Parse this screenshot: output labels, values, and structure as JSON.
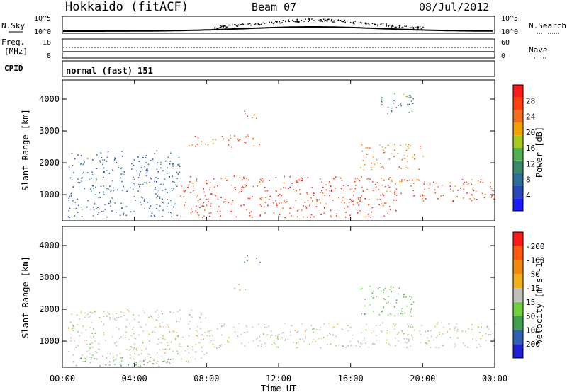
{
  "header": {
    "site": "Hokkaido (fitACF)",
    "beam": "Beam 07",
    "date": "08/Jul/2012"
  },
  "strip_labels": {
    "nsky": "N.Sky",
    "nsearch": "N.Search",
    "freq_top": "Freq.",
    "freq_unit": "[MHz]",
    "nave": "Nave",
    "cpid": "CPID",
    "cpid_value": "normal (fast) 151",
    "noise_left_ticks": [
      "10^5",
      "10^0"
    ],
    "noise_right_ticks": [
      "10^5",
      "10^0"
    ],
    "freq_left_ticks": [
      "18",
      "8"
    ],
    "freq_right_ticks": [
      "60",
      "0"
    ]
  },
  "x_axis": {
    "label": "Time UT",
    "ticks": [
      "00:00",
      "04:00",
      "08:00",
      "12:00",
      "16:00",
      "20:00",
      "00:00"
    ]
  },
  "y_axis": {
    "label": "Slant Range [km]",
    "ticks": [
      "1000",
      "2000",
      "3000",
      "4000"
    ]
  },
  "colors": {
    "power": [
      "#1a1aff",
      "#2848b8",
      "#2e6f99",
      "#3a8a6a",
      "#50b050",
      "#a8c820",
      "#f0a000",
      "#f07020",
      "#ff4010",
      "#ff1a1a"
    ],
    "velocity": [
      "#ff1a1a",
      "#ff5a10",
      "#f08a10",
      "#f0b020",
      "#c0c0b8",
      "#70d040",
      "#40a050",
      "#3060b0",
      "#2020d0"
    ]
  },
  "chart_data": [
    {
      "type": "heatmap",
      "title": "",
      "xlabel": "Time UT",
      "ylabel": "Slant Range [km]",
      "xlim": [
        "00:00",
        "24:00"
      ],
      "ylim": [
        180,
        4600
      ],
      "colorbar": {
        "label": "Power [dB]",
        "ticks": [
          "4",
          "8",
          "12",
          "16",
          "20",
          "24",
          "28"
        ],
        "range": [
          0,
          32
        ]
      },
      "features": [
        {
          "t_start": 0.3,
          "t_end": 6.5,
          "r_low": 300,
          "r_high": 2400,
          "value": 8
        },
        {
          "t_start": 6.5,
          "t_end": 18.5,
          "r_low": 300,
          "r_high": 1600,
          "value": 28
        },
        {
          "t_start": 7.0,
          "t_end": 11.0,
          "r_low": 2500,
          "r_high": 2900,
          "value": 26
        },
        {
          "t_start": 10.0,
          "t_end": 11.0,
          "r_low": 3400,
          "r_high": 3700,
          "value": 28
        },
        {
          "t_start": 16.5,
          "t_end": 20.0,
          "r_low": 1800,
          "r_high": 2600,
          "value": 22
        },
        {
          "t_start": 18.0,
          "t_end": 24.0,
          "r_low": 800,
          "r_high": 1500,
          "value": 26
        },
        {
          "t_start": 17.5,
          "t_end": 19.5,
          "r_low": 3500,
          "r_high": 4200,
          "value": 12
        }
      ]
    },
    {
      "type": "heatmap",
      "title": "",
      "xlabel": "Time UT",
      "ylabel": "Slant Range [km]",
      "xlim": [
        "00:00",
        "24:00"
      ],
      "ylim": [
        180,
        4600
      ],
      "colorbar": {
        "label": "Velocity [m s^-1]",
        "ticks": [
          "200",
          "100",
          "50",
          "15",
          "-15",
          "-50",
          "-100",
          "-200"
        ],
        "range": [
          -250,
          250
        ]
      },
      "features": [
        {
          "t_start": 0.3,
          "t_end": 8.0,
          "r_low": 300,
          "r_high": 2000,
          "value": 0
        },
        {
          "t_start": 0.3,
          "t_end": 6.0,
          "r_low": 200,
          "r_high": 500,
          "value": 60
        },
        {
          "t_start": 8.0,
          "t_end": 24.0,
          "r_low": 800,
          "r_high": 1600,
          "value": 0
        },
        {
          "t_start": 10.0,
          "t_end": 11.0,
          "r_low": 3400,
          "r_high": 3700,
          "value": 100
        },
        {
          "t_start": 9.5,
          "t_end": 10.5,
          "r_low": 2600,
          "r_high": 2800,
          "value": -60
        },
        {
          "t_start": 16.5,
          "t_end": 19.5,
          "r_low": 1800,
          "r_high": 2800,
          "value": 40
        }
      ]
    }
  ]
}
